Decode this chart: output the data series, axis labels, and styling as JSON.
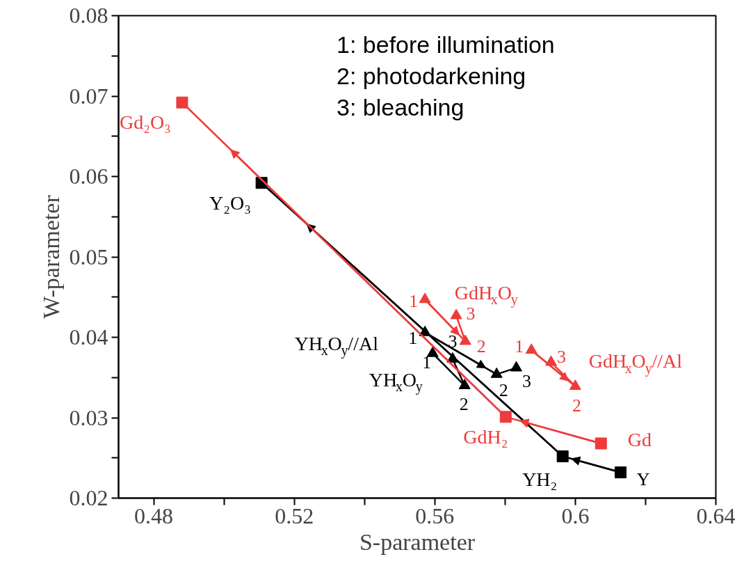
{
  "chart_data": {
    "type": "line",
    "xlabel": "S-parameter",
    "ylabel": "W-parameter",
    "xlim": [
      0.47,
      0.64
    ],
    "ylim": [
      0.02,
      0.08
    ],
    "xticks": [
      0.48,
      {
        "value": 0.5,
        "label": null
      },
      0.52,
      {
        "value": 0.54,
        "label": null
      },
      0.56,
      {
        "value": 0.58,
        "label": null
      },
      0.6,
      {
        "value": 0.62,
        "label": null
      },
      0.64
    ],
    "yticks": [
      0.02,
      {
        "value": 0.025,
        "label": null
      },
      0.03,
      {
        "value": 0.035,
        "label": null
      },
      0.04,
      {
        "value": 0.045,
        "label": null
      },
      0.05,
      {
        "value": 0.055,
        "label": null
      },
      0.06,
      {
        "value": 0.065,
        "label": null
      },
      0.07,
      {
        "value": 0.075,
        "label": null
      },
      0.08
    ],
    "grid": false,
    "line_style": "solid",
    "series": [
      {
        "color": "#000000",
        "marker": "square",
        "x": [
          0.6129,
          0.5964,
          0.5107
        ],
        "values": [
          0.0232,
          0.0252,
          0.0592
        ]
      },
      {
        "color": "#ee3b3b",
        "marker": "square",
        "x": [
          0.6073,
          0.5802,
          0.4881
        ],
        "values": [
          0.0268,
          0.0301,
          0.0692
        ]
      },
      {
        "color": "#000000",
        "marker": "triangle",
        "x": [
          0.5594,
          0.5685,
          0.5651
        ],
        "values": [
          0.038,
          0.034,
          0.0373
        ]
      },
      {
        "color": "#000000",
        "marker": "triangle",
        "x": [
          0.5572,
          0.5776,
          0.5832
        ],
        "values": [
          0.0406,
          0.0354,
          0.0362
        ]
      },
      {
        "color": "#ee3b3b",
        "marker": "triangle",
        "x": [
          0.5572,
          0.5687,
          0.5661
        ],
        "values": [
          0.0447,
          0.0395,
          0.0427
        ]
      },
      {
        "color": "#ee3b3b",
        "marker": "triangle",
        "x": [
          0.5875,
          0.6,
          0.5931
        ],
        "values": [
          0.0384,
          0.0339,
          0.0369
        ]
      }
    ],
    "annotations": [
      "1: before illumination",
      "2: photodarkening",
      "3: bleaching",
      {
        "text": "Y",
        "x": 0.6129,
        "y": 0.0232
      },
      {
        "text": "YH₂",
        "x": 0.5964,
        "y": 0.0252
      },
      {
        "text": "Y₂O₃",
        "x": 0.5107,
        "y": 0.0592
      },
      {
        "text": "Gd",
        "x": 0.6073,
        "y": 0.0268
      },
      {
        "text": "GdH₂",
        "x": 0.5802,
        "y": 0.0301
      },
      {
        "text": "Gd₂O₃",
        "x": 0.4881,
        "y": 0.0692
      },
      {
        "text": "YH$_{x}$O$_{y}$",
        "x": 0.5594,
        "y": 0.038
      },
      {
        "text": "1",
        "x": 0.5594,
        "y": 0.038
      },
      {
        "text": "2",
        "x": 0.5685,
        "y": 0.034
      },
      {
        "text": "3",
        "x": 0.5651,
        "y": 0.0373
      },
      {
        "text": "YH$_{x}$O$_{y}$//Al",
        "x": 0.5572,
        "y": 0.0406
      },
      {
        "text": "1",
        "x": 0.5572,
        "y": 0.0406
      },
      {
        "text": "2",
        "x": 0.5776,
        "y": 0.0354
      },
      {
        "text": "3",
        "x": 0.5832,
        "y": 0.0362
      },
      {
        "text": "GdH$_{x}$O$_{y}$",
        "x": 0.5572,
        "y": 0.0447
      },
      {
        "text": "1",
        "x": 0.5572,
        "y": 0.0447
      },
      {
        "text": "2",
        "x": 0.5687,
        "y": 0.0395
      },
      {
        "text": "3",
        "x": 0.5661,
        "y": 0.0427
      },
      {
        "text": "GdH$_{x}$O$_{y}$//Al",
        "x": 0.5875,
        "y": 0.0384
      },
      {
        "text": "1",
        "x": 0.5875,
        "y": 0.0384
      },
      {
        "text": "2",
        "x": 0.6,
        "y": 0.0339
      },
      {
        "text": "3",
        "x": 0.5931,
        "y": 0.0369
      }
    ]
  }
}
